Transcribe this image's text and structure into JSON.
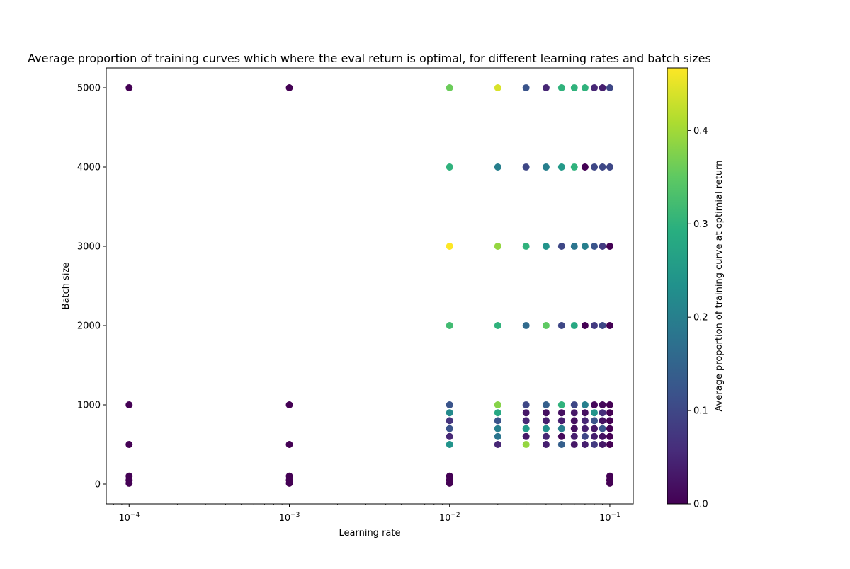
{
  "chart_data": {
    "type": "scatter",
    "title": "Average proportion of training curves which where the eval return is optimal, for different learning rates and batch sizes",
    "xlabel": "Learning rate",
    "ylabel": "Batch size",
    "xscale": "log",
    "xlim": [
      7.2e-05,
      0.14
    ],
    "ylim": [
      -250,
      5250
    ],
    "xticks": [
      {
        "value": 0.0001,
        "base": "10",
        "exp": "−4"
      },
      {
        "value": 0.001,
        "base": "10",
        "exp": "−3"
      },
      {
        "value": 0.01,
        "base": "10",
        "exp": "−2"
      },
      {
        "value": 0.1,
        "base": "10",
        "exp": "−1"
      }
    ],
    "yticks": [
      0,
      1000,
      2000,
      3000,
      4000,
      5000
    ],
    "colorbar": {
      "label": "Average proportion of training curve at optimial return",
      "colormap": "viridis",
      "range": [
        0,
        0.467
      ],
      "ticks": [
        "0.0",
        "0.1",
        "0.2",
        "0.3",
        "0.4"
      ],
      "tick_values": [
        0,
        0.1,
        0.2,
        0.3,
        0.4
      ]
    },
    "grid": false,
    "points": [
      [
        0.0001,
        5000,
        0.0
      ],
      [
        0.0001,
        1000,
        0.0
      ],
      [
        0.0001,
        500,
        0.0
      ],
      [
        0.0001,
        100,
        0.0
      ],
      [
        0.0001,
        50,
        0.0
      ],
      [
        0.0001,
        10,
        0.0
      ],
      [
        0.001,
        5000,
        0.0
      ],
      [
        0.001,
        1000,
        0.0
      ],
      [
        0.001,
        500,
        0.0
      ],
      [
        0.001,
        100,
        0.0
      ],
      [
        0.001,
        50,
        0.0
      ],
      [
        0.001,
        10,
        0.0
      ],
      [
        0.01,
        5000,
        0.36
      ],
      [
        0.01,
        4000,
        0.3
      ],
      [
        0.01,
        3000,
        0.467
      ],
      [
        0.01,
        2000,
        0.32
      ],
      [
        0.01,
        1000,
        0.12
      ],
      [
        0.01,
        900,
        0.22
      ],
      [
        0.01,
        800,
        0.07
      ],
      [
        0.01,
        700,
        0.12
      ],
      [
        0.01,
        600,
        0.05
      ],
      [
        0.01,
        500,
        0.24
      ],
      [
        0.01,
        100,
        0.0
      ],
      [
        0.01,
        50,
        0.0
      ],
      [
        0.01,
        10,
        0.0
      ],
      [
        0.02,
        5000,
        0.44
      ],
      [
        0.02,
        4000,
        0.2
      ],
      [
        0.02,
        3000,
        0.39
      ],
      [
        0.02,
        2000,
        0.3
      ],
      [
        0.02,
        1000,
        0.38
      ],
      [
        0.02,
        900,
        0.28
      ],
      [
        0.02,
        800,
        0.12
      ],
      [
        0.02,
        700,
        0.2
      ],
      [
        0.02,
        600,
        0.18
      ],
      [
        0.02,
        500,
        0.05
      ],
      [
        0.03,
        5000,
        0.12
      ],
      [
        0.03,
        4000,
        0.1
      ],
      [
        0.03,
        3000,
        0.3
      ],
      [
        0.03,
        2000,
        0.16
      ],
      [
        0.03,
        1000,
        0.1
      ],
      [
        0.03,
        900,
        0.03
      ],
      [
        0.03,
        800,
        0.05
      ],
      [
        0.03,
        700,
        0.25
      ],
      [
        0.03,
        600,
        0.03
      ],
      [
        0.03,
        500,
        0.39
      ],
      [
        0.04,
        5000,
        0.05
      ],
      [
        0.04,
        4000,
        0.2
      ],
      [
        0.04,
        3000,
        0.24
      ],
      [
        0.04,
        2000,
        0.35
      ],
      [
        0.04,
        1000,
        0.14
      ],
      [
        0.04,
        900,
        0.02
      ],
      [
        0.04,
        800,
        0.04
      ],
      [
        0.04,
        700,
        0.23
      ],
      [
        0.04,
        600,
        0.05
      ],
      [
        0.04,
        500,
        0.04
      ],
      [
        0.05,
        5000,
        0.3
      ],
      [
        0.05,
        4000,
        0.25
      ],
      [
        0.05,
        3000,
        0.1
      ],
      [
        0.05,
        2000,
        0.1
      ],
      [
        0.05,
        1000,
        0.3
      ],
      [
        0.05,
        900,
        0.02
      ],
      [
        0.05,
        800,
        0.04
      ],
      [
        0.05,
        700,
        0.2
      ],
      [
        0.05,
        600,
        0.01
      ],
      [
        0.05,
        500,
        0.14
      ],
      [
        0.06,
        5000,
        0.3
      ],
      [
        0.06,
        4000,
        0.3
      ],
      [
        0.06,
        3000,
        0.18
      ],
      [
        0.06,
        2000,
        0.28
      ],
      [
        0.06,
        1000,
        0.1
      ],
      [
        0.06,
        900,
        0.03
      ],
      [
        0.06,
        800,
        0.02
      ],
      [
        0.06,
        700,
        0.02
      ],
      [
        0.06,
        600,
        0.04
      ],
      [
        0.06,
        500,
        0.03
      ],
      [
        0.07,
        5000,
        0.3
      ],
      [
        0.07,
        4000,
        0.0
      ],
      [
        0.07,
        3000,
        0.2
      ],
      [
        0.07,
        2000,
        0.0
      ],
      [
        0.07,
        1000,
        0.2
      ],
      [
        0.07,
        900,
        0.02
      ],
      [
        0.07,
        800,
        0.05
      ],
      [
        0.07,
        700,
        0.04
      ],
      [
        0.07,
        600,
        0.1
      ],
      [
        0.07,
        500,
        0.04
      ],
      [
        0.08,
        5000,
        0.05
      ],
      [
        0.08,
        4000,
        0.1
      ],
      [
        0.08,
        3000,
        0.12
      ],
      [
        0.08,
        2000,
        0.08
      ],
      [
        0.08,
        1000,
        0.01
      ],
      [
        0.08,
        900,
        0.24
      ],
      [
        0.08,
        800,
        0.12
      ],
      [
        0.08,
        700,
        0.03
      ],
      [
        0.08,
        600,
        0.04
      ],
      [
        0.08,
        500,
        0.08
      ],
      [
        0.09,
        5000,
        0.04
      ],
      [
        0.09,
        4000,
        0.1
      ],
      [
        0.09,
        3000,
        0.08
      ],
      [
        0.09,
        2000,
        0.1
      ],
      [
        0.09,
        1000,
        0.01
      ],
      [
        0.09,
        900,
        0.06
      ],
      [
        0.09,
        800,
        0.02
      ],
      [
        0.09,
        700,
        0.12
      ],
      [
        0.09,
        600,
        0.02
      ],
      [
        0.09,
        500,
        0.03
      ],
      [
        0.1,
        5000,
        0.1
      ],
      [
        0.1,
        4000,
        0.1
      ],
      [
        0.1,
        3000,
        0.0
      ],
      [
        0.1,
        2000,
        0.0
      ],
      [
        0.1,
        1000,
        0.0
      ],
      [
        0.1,
        900,
        0.0
      ],
      [
        0.1,
        800,
        0.0
      ],
      [
        0.1,
        700,
        0.0
      ],
      [
        0.1,
        600,
        0.0
      ],
      [
        0.1,
        500,
        0.0
      ],
      [
        0.1,
        100,
        0.0
      ],
      [
        0.1,
        50,
        0.0
      ],
      [
        0.1,
        10,
        0.0
      ]
    ]
  }
}
